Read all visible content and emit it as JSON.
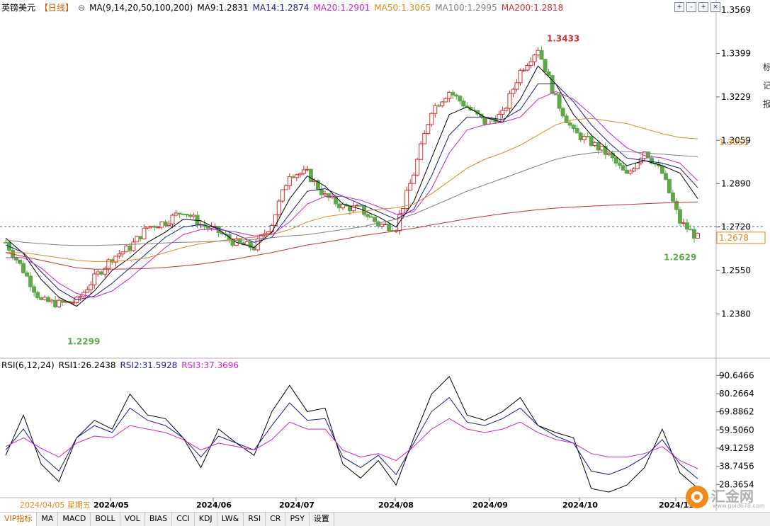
{
  "header": {
    "symbol": "英镑美元",
    "period": "【日线】",
    "ma_label": "MA(9,14,20,50,100,200)",
    "ma9": "MA9:1.2831",
    "ma14": "MA14:1.2874",
    "ma20": "MA20:1.2901",
    "ma50": "MA50:1.3065",
    "ma100": "MA100:1.2995",
    "ma200": "MA200:1.2818"
  },
  "rsi_header": {
    "label": "RSI(6,12,24)",
    "rsi1": "RSI1:26.2438",
    "rsi2": "RSI2:31.5928",
    "rsi3": "RSI3:37.3696"
  },
  "colors": {
    "up": "#d03030",
    "down": "#5fa84a",
    "ma9": "#000000",
    "ma14": "#1b1b8f",
    "ma20": "#d020d0",
    "ma50": "#e08a1a",
    "ma100": "#808080",
    "ma200": "#c83030"
  },
  "chart_data": [
    {
      "type": "candlestick",
      "title": "英镑美元【日线】",
      "y_ticks": [
        "1.3569",
        "1.3399",
        "1.3229",
        "1.3059",
        "1.2890",
        "1.2720",
        "1.2550",
        "1.2380"
      ],
      "ylim": [
        1.2215,
        1.3575
      ],
      "x_ticks": [
        "2024/05",
        "2024/06",
        "2024/07",
        "2024/08",
        "2024/09",
        "2024/10",
        "2024/11"
      ],
      "first_date": "2024/04/05 星期五",
      "current_price": "1.2678",
      "ma50_marker": "1.3051",
      "annotations": {
        "high": "1.3433",
        "low_early": "1.2299",
        "low_recent": "1.2629"
      },
      "series": [
        {
          "name": "MA9",
          "values": [
            1.2677,
            1.2616,
            1.2515,
            1.2445,
            1.241,
            1.247,
            1.255,
            1.26,
            1.266,
            1.27,
            1.275,
            1.2745,
            1.271,
            1.266,
            1.264,
            1.27,
            1.283,
            1.292,
            1.288,
            1.281,
            1.279,
            1.276,
            1.272,
            1.282,
            1.299,
            1.316,
            1.319,
            1.315,
            1.313,
            1.322,
            1.335,
            1.328,
            1.316,
            1.308,
            1.302,
            1.296,
            1.298,
            1.296,
            1.2931,
            1.2831
          ]
        },
        {
          "name": "MA14",
          "values": [
            1.265,
            1.262,
            1.2545,
            1.2475,
            1.2435,
            1.245,
            1.25,
            1.256,
            1.262,
            1.268,
            1.272,
            1.273,
            1.2715,
            1.269,
            1.266,
            1.268,
            1.277,
            1.286,
            1.287,
            1.284,
            1.281,
            1.278,
            1.275,
            1.279,
            1.292,
            1.308,
            1.315,
            1.315,
            1.314,
            1.318,
            1.328,
            1.328,
            1.321,
            1.312,
            1.305,
            1.299,
            1.298,
            1.297,
            1.295,
            1.2874
          ]
        },
        {
          "name": "MA20",
          "values": [
            1.26,
            1.26,
            1.256,
            1.25,
            1.246,
            1.2445,
            1.247,
            1.252,
            1.258,
            1.264,
            1.269,
            1.271,
            1.271,
            1.27,
            1.2685,
            1.269,
            1.274,
            1.281,
            1.284,
            1.284,
            1.2825,
            1.28,
            1.277,
            1.278,
            1.287,
            1.301,
            1.31,
            1.312,
            1.313,
            1.315,
            1.322,
            1.325,
            1.322,
            1.316,
            1.309,
            1.303,
            1.3,
            1.299,
            1.297,
            1.2901
          ]
        },
        {
          "name": "MA50",
          "values": [
            1.262,
            1.262,
            1.261,
            1.26,
            1.259,
            1.2585,
            1.2585,
            1.259,
            1.26,
            1.262,
            1.264,
            1.2655,
            1.2665,
            1.2675,
            1.268,
            1.269,
            1.271,
            1.274,
            1.276,
            1.277,
            1.278,
            1.279,
            1.2795,
            1.281,
            1.285,
            1.29,
            1.295,
            1.2985,
            1.301,
            1.304,
            1.308,
            1.312,
            1.314,
            1.3145,
            1.3135,
            1.3125,
            1.3105,
            1.3085,
            1.307,
            1.3065
          ]
        },
        {
          "name": "MA100",
          "values": [
            1.267,
            1.266,
            1.2655,
            1.265,
            1.2648,
            1.2648,
            1.265,
            1.2652,
            1.2655,
            1.2658,
            1.266,
            1.2662,
            1.2665,
            1.2668,
            1.2672,
            1.2678,
            1.2685,
            1.269,
            1.27,
            1.271,
            1.272,
            1.2735,
            1.275,
            1.277,
            1.28,
            1.283,
            1.286,
            1.2885,
            1.291,
            1.2935,
            1.296,
            1.2985,
            1.3,
            1.301,
            1.3015,
            1.3015,
            1.301,
            1.3005,
            1.3,
            1.2995
          ]
        },
        {
          "name": "MA200",
          "values": [
            1.262,
            1.2605,
            1.259,
            1.2575,
            1.256,
            1.2555,
            1.2555,
            1.2556,
            1.2558,
            1.2562,
            1.2568,
            1.2575,
            1.2585,
            1.2595,
            1.2608,
            1.262,
            1.2635,
            1.265,
            1.266,
            1.2672,
            1.2685,
            1.2695,
            1.2705,
            1.2715,
            1.2728,
            1.274,
            1.2752,
            1.2762,
            1.2772,
            1.278,
            1.2788,
            1.2794,
            1.2798,
            1.2802,
            1.2805,
            1.2808,
            1.2811,
            1.2814,
            1.2816,
            1.2818
          ]
        }
      ],
      "closes": [
        1.266,
        1.255,
        1.243,
        1.242,
        1.243,
        1.252,
        1.26,
        1.264,
        1.272,
        1.274,
        1.2785,
        1.273,
        1.27,
        1.2655,
        1.264,
        1.2735,
        1.293,
        1.293,
        1.284,
        1.28,
        1.279,
        1.273,
        1.272,
        1.293,
        1.318,
        1.325,
        1.319,
        1.313,
        1.316,
        1.333,
        1.342,
        1.322,
        1.309,
        1.305,
        1.3,
        1.292,
        1.302,
        1.293,
        1.274,
        1.2678
      ]
    },
    {
      "type": "line",
      "title": "RSI(6,12,24)",
      "y_ticks": [
        "90.6466",
        "80.2664",
        "69.8862",
        "59.5060",
        "49.1258",
        "38.7456",
        "28.3654"
      ],
      "ylim": [
        22.0,
        92.0
      ],
      "series": [
        {
          "name": "RSI1",
          "values": [
            45,
            68,
            40,
            30,
            55,
            65,
            60,
            80,
            68,
            66,
            55,
            38,
            60,
            52,
            45,
            70,
            85,
            70,
            72,
            40,
            32,
            42,
            28,
            55,
            80,
            90,
            68,
            65,
            70,
            78,
            62,
            58,
            55,
            26,
            24,
            28,
            38,
            60,
            35,
            26.2438
          ]
        },
        {
          "name": "RSI2",
          "values": [
            48,
            60,
            45,
            36,
            55,
            62,
            58,
            72,
            65,
            62,
            55,
            44,
            56,
            52,
            48,
            62,
            75,
            65,
            66,
            44,
            38,
            45,
            34,
            52,
            70,
            78,
            64,
            62,
            66,
            72,
            62,
            56,
            52,
            36,
            34,
            38,
            44,
            54,
            40,
            31.5928
          ]
        },
        {
          "name": "RSI3",
          "values": [
            50,
            55,
            49,
            44,
            52,
            56,
            55,
            62,
            60,
            58,
            54,
            48,
            52,
            50,
            48,
            54,
            64,
            60,
            60,
            48,
            44,
            46,
            42,
            50,
            60,
            66,
            60,
            58,
            60,
            64,
            58,
            54,
            52,
            46,
            44,
            44,
            46,
            50,
            42,
            37.3696
          ]
        }
      ]
    }
  ],
  "toolbar": {
    "buttons": [
      "+",
      "-",
      "+",
      "×"
    ]
  },
  "tabs": [
    "VIP指标",
    "MA",
    "MACD",
    "BOLL",
    "VOL",
    "BIAS",
    "CCI",
    "KDJ",
    "LW&",
    "RSI",
    "CR",
    "PSY",
    "设置"
  ],
  "logo": {
    "text": "汇金网",
    "sub": "www.gold678.com"
  },
  "side_glyphs": [
    "标",
    "记",
    "报"
  ]
}
